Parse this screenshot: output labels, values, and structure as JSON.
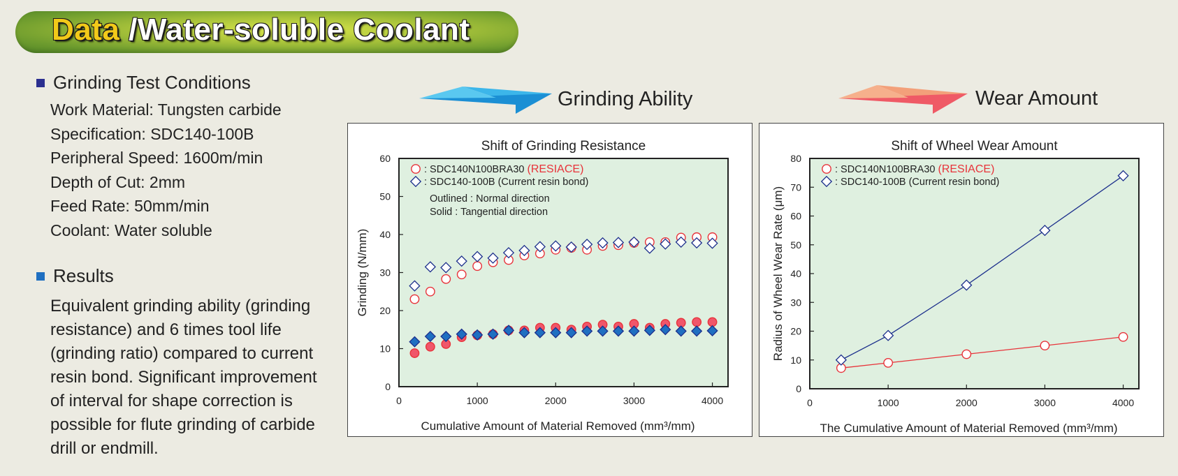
{
  "banner": {
    "highlight": "Data",
    "rest": " /Water-soluble Coolant"
  },
  "conditions": {
    "heading": "Grinding Test Conditions",
    "items": [
      "Work Material: Tungsten carbide",
      "Specification: SDC140-100B",
      "Peripheral Speed: 1600m/min",
      "Depth of Cut: 2mm",
      "Feed Rate: 50mm/min",
      "Coolant: Water soluble"
    ]
  },
  "results": {
    "heading": "Results",
    "text": "Equivalent grinding ability (grinding resistance) and 6 times tool life (grinding ratio) compared to current resin bond. Significant improvement of interval for shape correction is possible for flute grinding of carbide drill or endmill."
  },
  "colors": {
    "red": "#e8333a",
    "red_fill": "#f0566a",
    "blue": "#1c2f8c",
    "blue_fill": "#1f6fc1",
    "plot_bg": "#dff0e0",
    "bullet1": "#2b2f8f",
    "bullet2": "#1f6fc1"
  },
  "chart_data": [
    {
      "type": "scatter",
      "heading": "Grinding Ability",
      "title": "Shift of Grinding Resistance",
      "ylabel": "Grinding (N/mm)",
      "xlabel": "Cumulative Amount of Material Removed (mm³/mm)",
      "xlim": [
        0,
        4200
      ],
      "ylim": [
        0,
        60
      ],
      "xticks": [
        0,
        1000,
        2000,
        3000,
        4000
      ],
      "yticks": [
        0,
        10,
        20,
        30,
        40,
        50,
        60
      ],
      "legend": [
        {
          "prefix": ": SDC140N100BRA30 ",
          "highlight": "(RESIACE)",
          "marker": "circle"
        },
        {
          "prefix": ": SDC140-100B (Current resin bond)",
          "highlight": "",
          "marker": "diamond"
        }
      ],
      "notes": [
        "Outlined : Normal direction",
        "Solid : Tangential direction"
      ],
      "series": [
        {
          "name": "SDC140N100BRA30 Normal",
          "marker": "circle",
          "filled": false,
          "color": "red",
          "x": [
            200,
            400,
            600,
            800,
            1000,
            1200,
            1400,
            1600,
            1800,
            2000,
            2200,
            2400,
            2600,
            2800,
            3000,
            3200,
            3400,
            3600,
            3800,
            4000
          ],
          "y": [
            23,
            25,
            28.3,
            29.5,
            31.7,
            32.7,
            33.3,
            34.5,
            35,
            36,
            36.5,
            36,
            37,
            37.2,
            37.8,
            38,
            38,
            39.2,
            39.3,
            39.3
          ]
        },
        {
          "name": "SDC140-100B Normal",
          "marker": "diamond",
          "filled": false,
          "color": "blue",
          "x": [
            200,
            400,
            600,
            800,
            1000,
            1200,
            1400,
            1600,
            1800,
            2000,
            2200,
            2400,
            2600,
            2800,
            3000,
            3200,
            3400,
            3600,
            3800,
            4000
          ],
          "y": [
            26.5,
            31.5,
            31.3,
            33,
            34.2,
            33.8,
            35.2,
            35.8,
            36.8,
            37,
            36.7,
            37.4,
            37.8,
            37.9,
            38,
            36.4,
            37.5,
            38,
            37.8,
            37.7
          ]
        },
        {
          "name": "SDC140N100BRA30 Tangential",
          "marker": "circle",
          "filled": true,
          "color": "red",
          "x": [
            200,
            400,
            600,
            800,
            1000,
            1200,
            1400,
            1600,
            1800,
            2000,
            2200,
            2400,
            2600,
            2800,
            3000,
            3200,
            3400,
            3600,
            3800,
            4000
          ],
          "y": [
            8.8,
            10.5,
            11.2,
            13,
            13.5,
            13.8,
            14.8,
            14.8,
            15.5,
            15.5,
            15,
            15.8,
            16.3,
            15.8,
            16.5,
            15.5,
            16.5,
            16.8,
            17,
            17
          ]
        },
        {
          "name": "SDC140-100B Tangential",
          "marker": "diamond",
          "filled": true,
          "color": "blue",
          "x": [
            200,
            400,
            600,
            800,
            1000,
            1200,
            1400,
            1600,
            1800,
            2000,
            2200,
            2400,
            2600,
            2800,
            3000,
            3200,
            3400,
            3600,
            3800,
            4000
          ],
          "y": [
            11.8,
            13.2,
            13.2,
            13.8,
            13.6,
            13.8,
            14.8,
            14.2,
            14.2,
            14.2,
            14.2,
            14.6,
            14.6,
            14.6,
            14.6,
            14.8,
            15,
            14.6,
            14.6,
            14.7
          ]
        }
      ]
    },
    {
      "type": "line",
      "heading": "Wear Amount",
      "title": "Shift of Wheel Wear Amount",
      "ylabel": "Radius of Wheel Wear Rate (μm)",
      "xlabel": "The Cumulative Amount of Material Removed (mm³/mm)",
      "xlim": [
        0,
        4200
      ],
      "ylim": [
        0,
        80
      ],
      "xticks": [
        0,
        1000,
        2000,
        3000,
        4000
      ],
      "yticks": [
        0,
        10,
        20,
        30,
        40,
        50,
        60,
        70,
        80
      ],
      "legend": [
        {
          "prefix": ": SDC140N100BRA30 ",
          "highlight": "(RESIACE)",
          "marker": "circle"
        },
        {
          "prefix": ": SDC140-100B (Current resin bond)",
          "highlight": "",
          "marker": "diamond"
        }
      ],
      "notes": [],
      "series": [
        {
          "name": "SDC140N100BRA30 (RESIACE)",
          "marker": "circle",
          "filled": false,
          "color": "red",
          "line": true,
          "x": [
            400,
            1000,
            2000,
            3000,
            4000
          ],
          "y": [
            7.2,
            9,
            12,
            15,
            18
          ]
        },
        {
          "name": "SDC140-100B (Current resin bond)",
          "marker": "diamond",
          "filled": false,
          "color": "blue",
          "line": true,
          "x": [
            400,
            1000,
            2000,
            3000,
            4000
          ],
          "y": [
            10,
            18.5,
            36,
            55,
            74
          ]
        }
      ]
    }
  ]
}
